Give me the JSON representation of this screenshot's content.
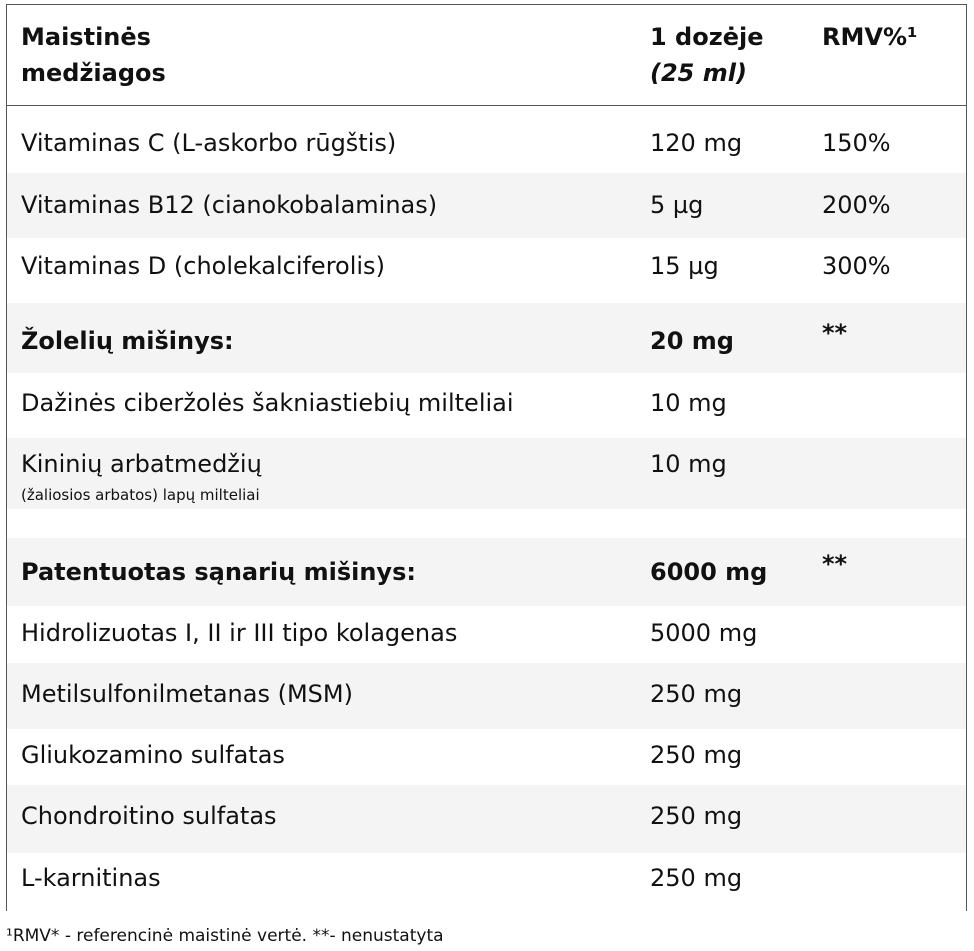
{
  "table": {
    "header": [
      [
        "Maistinės",
        "medžiagos"
      ],
      [
        "1 dozėje",
        "(25 ml)"
      ],
      [
        "RMV%¹"
      ]
    ],
    "rows": [
      {
        "name": "Vitaminas C (L-askorbo rūgštis)",
        "amount": "120 mg",
        "rmv": "150%"
      },
      {
        "name": "Vitaminas B12 (cianokobalaminas)",
        "amount": "5 µg",
        "rmv": "200%"
      },
      {
        "name": "Vitaminas D (cholekalciferolis)",
        "amount": "15 µg",
        "rmv": "300%"
      },
      {
        "name": "Žolelių mišinys:",
        "amount": "20 mg",
        "rmv": "**",
        "bold": true
      },
      {
        "name": "Dažinės ciberžolės šakniastiebių milteliai",
        "amount": "10 mg"
      },
      {
        "name": "Kininių arbatmedžių",
        "sub": "(žaliosios arbatos) lapų milteliai",
        "amount": "10 mg"
      },
      {
        "name": "Patentuotas sąnarių mišinys:",
        "amount": "6000 mg",
        "rmv": "**",
        "bold": true
      },
      {
        "name": "Hidrolizuotas I, II ir III tipo kolagenas",
        "amount": "5000 mg"
      },
      {
        "name": "Metilsulfonilmetanas (MSM)",
        "amount": "250 mg"
      },
      {
        "name": "Gliukozamino sulfatas",
        "amount": "250 mg"
      },
      {
        "name": "Chondroitino sulfatas",
        "amount": "250 mg"
      },
      {
        "name": "L-karnitinas",
        "amount": "250 mg"
      }
    ]
  },
  "footnote": "¹RMV* - referencinė maistinė vertė. **- nenustatyta"
}
